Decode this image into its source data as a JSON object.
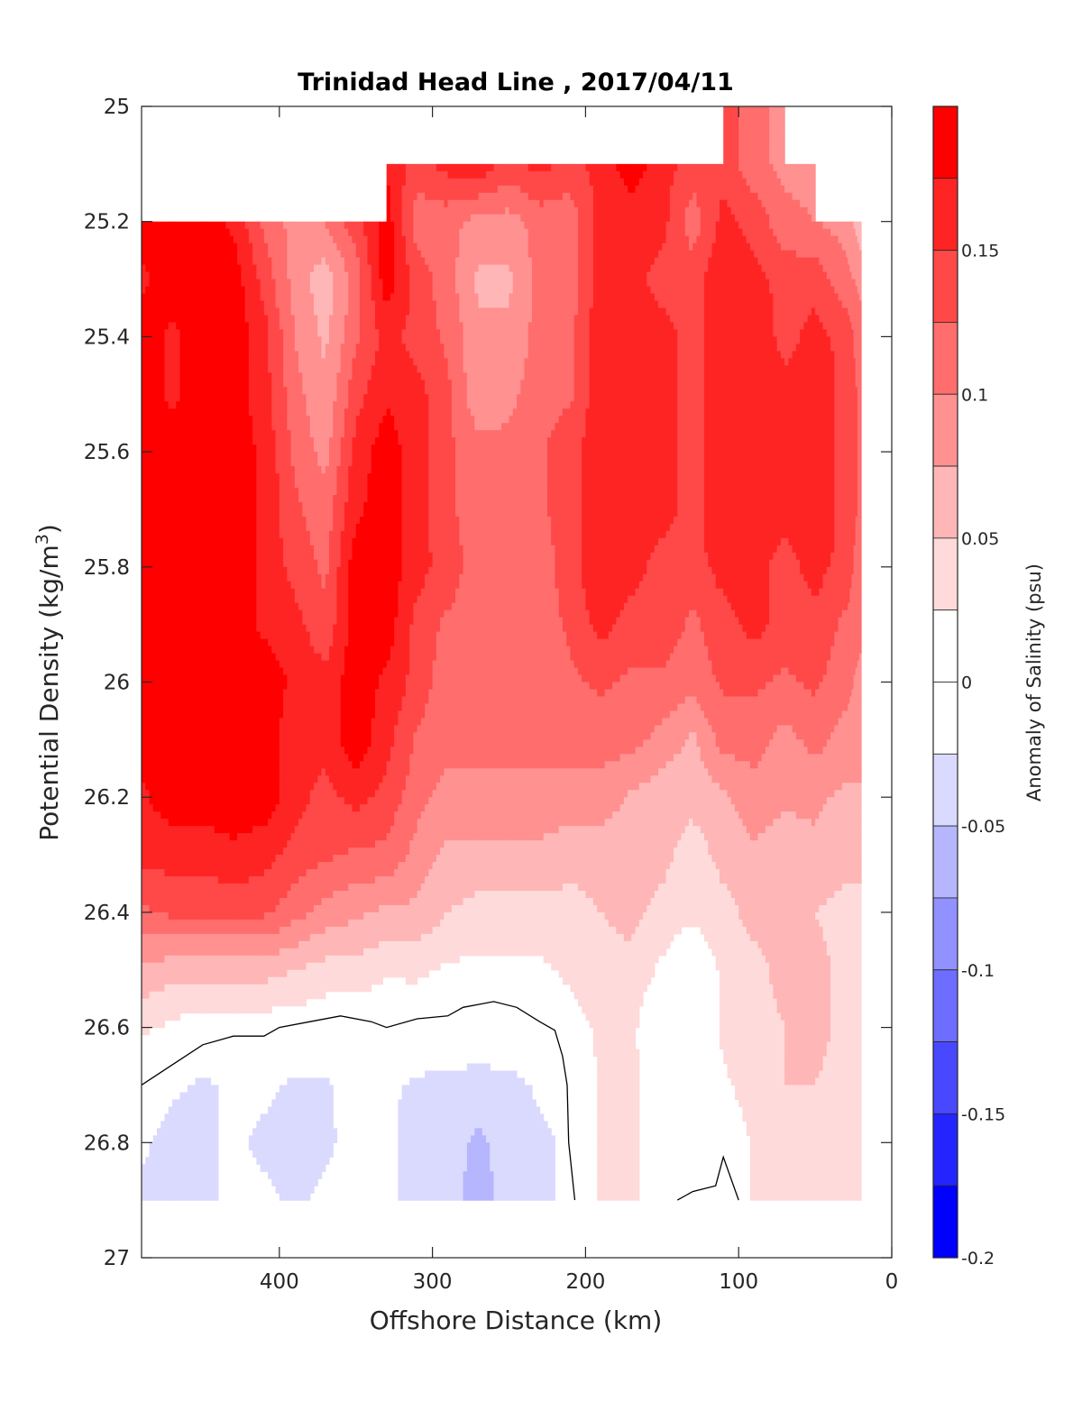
{
  "chart_data": {
    "type": "contourf",
    "title": "Trinidad Head Line , 2017/04/11",
    "xlabel": "Offshore Distance (km)",
    "ylabel": "Potential Density (kg/m",
    "ylabel_superscript": "3",
    "ylabel_suffix": ")",
    "xlim": [
      490,
      0
    ],
    "x_reversed": true,
    "ylim": [
      25,
      27
    ],
    "y_reversed": true,
    "xticks": [
      400,
      300,
      200,
      100,
      0
    ],
    "xtick_labels": [
      "400",
      "300",
      "200",
      "100",
      "0"
    ],
    "yticks": [
      25,
      25.2,
      25.4,
      25.6,
      25.8,
      26,
      26.2,
      26.4,
      26.6,
      26.8,
      27
    ],
    "ytick_labels": [
      "25",
      "25.2",
      "25.4",
      "25.6",
      "25.8",
      "26",
      "26.2",
      "26.4",
      "26.6",
      "26.8",
      "27"
    ],
    "colorbar": {
      "label": "Anomaly of Salinity (psu)",
      "range": [
        -0.2,
        0.2
      ],
      "level_step": 0.025,
      "ticks": [
        0.15,
        0.1,
        0.05,
        0,
        -0.05,
        -0.1,
        -0.15,
        -0.2
      ],
      "tick_labels": [
        "0.15",
        "0.1",
        "0.05",
        "0",
        "-0.05",
        "-0.1",
        "-0.15",
        "-0.2"
      ],
      "colors_top_to_bottom": [
        "#ff0000",
        "#ff2424",
        "#ff4848",
        "#ff6d6d",
        "#ff9191",
        "#ffb6b6",
        "#ffdada",
        "#ffffff",
        "#ffffff",
        "#dadaff",
        "#b6b6ff",
        "#9191ff",
        "#6d6dff",
        "#4848ff",
        "#2424ff",
        "#0000ff"
      ]
    },
    "x": [
      490,
      470,
      450,
      430,
      410,
      390,
      370,
      350,
      330,
      310,
      290,
      270,
      250,
      230,
      210,
      190,
      170,
      150,
      130,
      110,
      90,
      70,
      50,
      30,
      20
    ],
    "y": [
      25.0,
      25.1,
      25.2,
      25.3,
      25.4,
      25.5,
      25.6,
      25.7,
      25.8,
      25.9,
      26.0,
      26.1,
      26.2,
      26.3,
      26.4,
      26.5,
      26.6,
      26.7,
      26.8,
      26.9
    ],
    "z": [
      [
        null,
        null,
        null,
        null,
        null,
        null,
        null,
        null,
        null,
        null,
        null,
        null,
        null,
        null,
        null,
        null,
        null,
        null,
        null,
        0.14,
        0.11,
        0.09,
        null,
        null,
        null
      ],
      [
        null,
        null,
        null,
        null,
        null,
        null,
        null,
        null,
        0.17,
        0.14,
        0.16,
        0.17,
        0.14,
        0.16,
        0.14,
        0.16,
        0.19,
        0.16,
        0.14,
        0.14,
        0.11,
        0.09,
        0.09,
        null,
        null
      ],
      [
        0.19,
        0.19,
        0.19,
        0.17,
        0.12,
        0.09,
        0.1,
        0.14,
        0.19,
        0.11,
        0.11,
        0.09,
        0.09,
        0.11,
        0.11,
        0.16,
        0.16,
        0.16,
        0.11,
        0.16,
        0.14,
        0.11,
        0.1,
        0.09,
        0.06
      ],
      [
        0.17,
        0.19,
        0.19,
        0.19,
        0.14,
        0.09,
        0.06,
        0.11,
        0.19,
        0.14,
        0.11,
        0.07,
        0.07,
        0.11,
        0.11,
        0.16,
        0.16,
        0.14,
        0.14,
        0.17,
        0.16,
        0.14,
        0.14,
        0.11,
        0.09
      ],
      [
        0.19,
        0.17,
        0.19,
        0.19,
        0.16,
        0.1,
        0.07,
        0.12,
        0.16,
        0.14,
        0.12,
        0.08,
        0.08,
        0.11,
        0.12,
        0.17,
        0.17,
        0.16,
        0.14,
        0.17,
        0.17,
        0.14,
        0.16,
        0.14,
        0.11
      ],
      [
        0.19,
        0.17,
        0.19,
        0.19,
        0.16,
        0.11,
        0.08,
        0.14,
        0.17,
        0.16,
        0.13,
        0.08,
        0.09,
        0.12,
        0.12,
        0.17,
        0.17,
        0.16,
        0.14,
        0.17,
        0.17,
        0.16,
        0.17,
        0.14,
        0.12
      ],
      [
        0.19,
        0.19,
        0.19,
        0.19,
        0.17,
        0.12,
        0.09,
        0.16,
        0.19,
        0.16,
        0.13,
        0.11,
        0.11,
        0.12,
        0.14,
        0.17,
        0.17,
        0.16,
        0.14,
        0.17,
        0.17,
        0.16,
        0.17,
        0.14,
        0.12
      ],
      [
        0.19,
        0.19,
        0.19,
        0.19,
        0.17,
        0.13,
        0.11,
        0.17,
        0.19,
        0.16,
        0.13,
        0.11,
        0.11,
        0.12,
        0.14,
        0.17,
        0.17,
        0.16,
        0.14,
        0.17,
        0.17,
        0.16,
        0.17,
        0.14,
        0.12
      ],
      [
        0.19,
        0.19,
        0.19,
        0.19,
        0.17,
        0.14,
        0.12,
        0.19,
        0.19,
        0.16,
        0.14,
        0.11,
        0.11,
        0.11,
        0.14,
        0.17,
        0.16,
        0.14,
        0.14,
        0.16,
        0.16,
        0.14,
        0.16,
        0.14,
        0.11
      ],
      [
        0.19,
        0.19,
        0.19,
        0.19,
        0.17,
        0.16,
        0.13,
        0.19,
        0.19,
        0.14,
        0.12,
        0.11,
        0.11,
        0.11,
        0.13,
        0.16,
        0.14,
        0.14,
        0.12,
        0.14,
        0.16,
        0.14,
        0.14,
        0.12,
        0.11
      ],
      [
        0.19,
        0.19,
        0.19,
        0.19,
        0.19,
        0.17,
        0.16,
        0.19,
        0.17,
        0.14,
        0.11,
        0.11,
        0.11,
        0.11,
        0.12,
        0.13,
        0.12,
        0.12,
        0.11,
        0.13,
        0.13,
        0.12,
        0.13,
        0.11,
        0.09
      ],
      [
        0.19,
        0.19,
        0.19,
        0.19,
        0.19,
        0.16,
        0.16,
        0.19,
        0.16,
        0.12,
        0.11,
        0.11,
        0.11,
        0.11,
        0.11,
        0.11,
        0.11,
        0.09,
        0.07,
        0.11,
        0.11,
        0.09,
        0.11,
        0.09,
        0.09
      ],
      [
        0.17,
        0.19,
        0.19,
        0.19,
        0.19,
        0.16,
        0.14,
        0.16,
        0.14,
        0.11,
        0.09,
        0.09,
        0.09,
        0.09,
        0.09,
        0.09,
        0.07,
        0.06,
        0.06,
        0.07,
        0.09,
        0.08,
        0.08,
        0.07,
        0.07
      ],
      [
        0.16,
        0.16,
        0.16,
        0.17,
        0.16,
        0.14,
        0.13,
        0.12,
        0.12,
        0.09,
        0.07,
        0.07,
        0.07,
        0.07,
        0.06,
        0.06,
        0.06,
        0.06,
        0.035,
        0.06,
        0.07,
        0.06,
        0.07,
        0.06,
        0.06
      ],
      [
        0.12,
        0.13,
        0.13,
        0.13,
        0.13,
        0.11,
        0.09,
        0.08,
        0.07,
        0.07,
        0.05,
        0.04,
        0.04,
        0.04,
        0.04,
        0.05,
        0.06,
        0.04,
        0.03,
        0.04,
        0.06,
        0.06,
        0.05,
        0.04,
        0.04
      ],
      [
        0.07,
        0.06,
        0.06,
        0.06,
        0.06,
        0.05,
        0.04,
        0.04,
        0.03,
        0.03,
        0.02,
        0.02,
        0.02,
        0.02,
        0.03,
        0.04,
        0.04,
        0.02,
        0.0,
        0.03,
        0.04,
        0.06,
        0.06,
        0.04,
        0.035
      ],
      [
        0.03,
        0.02,
        0.01,
        0.01,
        0.01,
        0.01,
        0.005,
        0.005,
        0.0,
        0.005,
        0.0,
        -0.005,
        0.0,
        0.0,
        0.015,
        0.03,
        0.03,
        0.0,
        0.0,
        0.03,
        0.04,
        0.05,
        0.06,
        0.04,
        0.035
      ],
      [
        0.0,
        -0.02,
        -0.03,
        -0.02,
        -0.02,
        -0.03,
        -0.03,
        -0.01,
        -0.02,
        -0.03,
        -0.035,
        -0.035,
        -0.035,
        -0.02,
        -0.01,
        0.03,
        0.03,
        0.01,
        0.0,
        0.02,
        0.04,
        0.05,
        0.05,
        0.04,
        0.03
      ],
      [
        -0.02,
        -0.035,
        -0.03,
        -0.02,
        -0.03,
        -0.035,
        -0.03,
        -0.015,
        -0.02,
        -0.035,
        -0.04,
        -0.055,
        -0.04,
        -0.03,
        -0.02,
        0.03,
        0.03,
        0.01,
        -0.005,
        -0.005,
        0.03,
        0.04,
        0.04,
        0.03,
        0.03
      ],
      [
        -0.03,
        -0.035,
        -0.03,
        -0.02,
        -0.02,
        -0.03,
        -0.02,
        -0.01,
        -0.02,
        -0.035,
        -0.04,
        -0.06,
        -0.04,
        -0.03,
        -0.02,
        0.03,
        0.03,
        0.01,
        0.0,
        0.0,
        0.03,
        0.03,
        0.03,
        0.03,
        0.03
      ]
    ],
    "zero_contour_lines": [
      [
        [
          490,
          26.7
        ],
        [
          470,
          26.665
        ],
        [
          450,
          26.63
        ],
        [
          430,
          26.615
        ],
        [
          410,
          26.615
        ],
        [
          400,
          26.6
        ],
        [
          380,
          26.59
        ],
        [
          360,
          26.58
        ],
        [
          340,
          26.59
        ],
        [
          330,
          26.6
        ],
        [
          310,
          26.585
        ],
        [
          290,
          26.58
        ],
        [
          280,
          26.565
        ],
        [
          270,
          26.56
        ],
        [
          260,
          26.555
        ],
        [
          245,
          26.565
        ],
        [
          230,
          26.59
        ],
        [
          220,
          26.605
        ],
        [
          215,
          26.65
        ],
        [
          212,
          26.7
        ],
        [
          211,
          26.8
        ],
        [
          207,
          26.9
        ]
      ],
      [
        [
          140,
          26.9
        ],
        [
          130,
          26.885
        ],
        [
          115,
          26.875
        ],
        [
          110,
          26.825
        ],
        [
          100,
          26.9
        ]
      ]
    ],
    "grid": false
  }
}
